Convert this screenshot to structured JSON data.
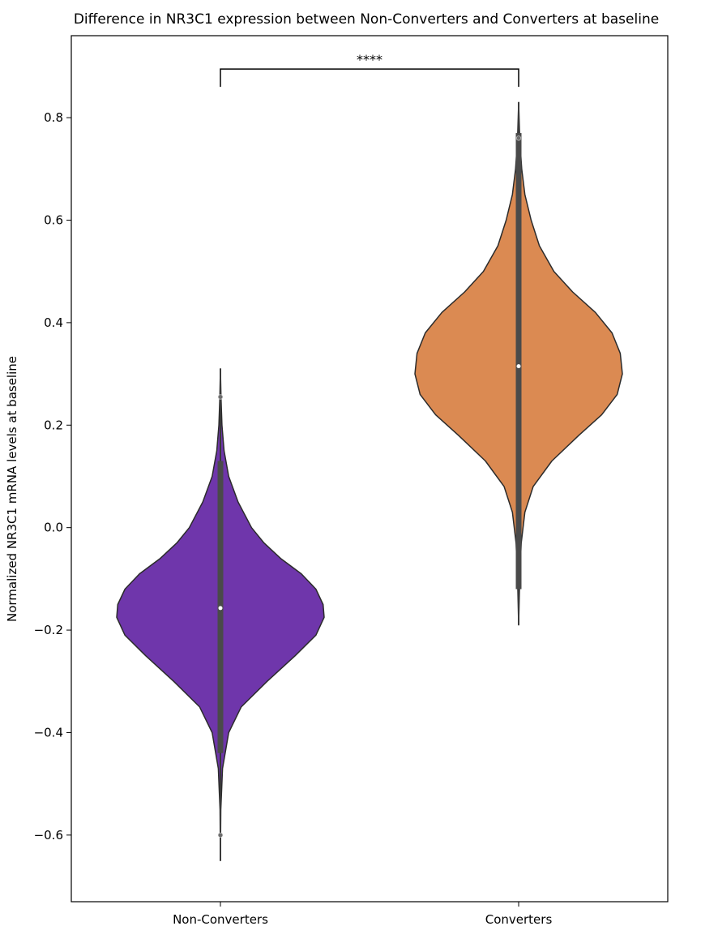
{
  "chart_data": {
    "type": "violin",
    "title": "Difference in NR3C1 expression between Non-Converters and Converters at baseline",
    "xlabel": "",
    "ylabel": "Normalized NR3C1 mRNA levels at baseline",
    "ylim": [
      -0.73,
      0.96
    ],
    "yticks": [
      -0.6,
      -0.4,
      -0.2,
      0.0,
      0.2,
      0.4,
      0.6,
      0.8
    ],
    "ytick_labels": [
      "−0.6",
      "−0.4",
      "−0.2",
      "0.0",
      "0.2",
      "0.4",
      "0.6",
      "0.8"
    ],
    "grid": false,
    "categories": [
      "Non-Converters",
      "Converters"
    ],
    "series": [
      {
        "color": "#6f36ab",
        "median": -0.157,
        "whisker": [
          -0.65,
          0.31
        ],
        "iqr": [
          -0.44,
          0.13
        ],
        "points": [
          -0.6,
          0.255
        ],
        "profile": [
          [
            -0.65,
            0.0
          ],
          [
            -0.55,
            0.004
          ],
          [
            -0.47,
            0.02
          ],
          [
            -0.4,
            0.08
          ],
          [
            -0.35,
            0.2
          ],
          [
            -0.3,
            0.45
          ],
          [
            -0.25,
            0.72
          ],
          [
            -0.21,
            0.92
          ],
          [
            -0.175,
            1.0
          ],
          [
            -0.15,
            0.99
          ],
          [
            -0.12,
            0.92
          ],
          [
            -0.09,
            0.78
          ],
          [
            -0.06,
            0.58
          ],
          [
            -0.03,
            0.42
          ],
          [
            0.0,
            0.3
          ],
          [
            0.05,
            0.17
          ],
          [
            0.1,
            0.08
          ],
          [
            0.15,
            0.035
          ],
          [
            0.2,
            0.015
          ],
          [
            0.25,
            0.006
          ],
          [
            0.31,
            0.0
          ]
        ]
      },
      {
        "color": "#db8a52",
        "median": 0.315,
        "whisker": [
          -0.19,
          0.83
        ],
        "iqr": [
          -0.12,
          0.77
        ],
        "points": [
          0.76
        ],
        "profile": [
          [
            -0.19,
            0.0
          ],
          [
            -0.1,
            0.01
          ],
          [
            -0.03,
            0.025
          ],
          [
            0.03,
            0.06
          ],
          [
            0.08,
            0.14
          ],
          [
            0.13,
            0.32
          ],
          [
            0.18,
            0.58
          ],
          [
            0.22,
            0.8
          ],
          [
            0.26,
            0.95
          ],
          [
            0.3,
            1.0
          ],
          [
            0.34,
            0.98
          ],
          [
            0.38,
            0.9
          ],
          [
            0.42,
            0.74
          ],
          [
            0.46,
            0.52
          ],
          [
            0.5,
            0.34
          ],
          [
            0.55,
            0.2
          ],
          [
            0.6,
            0.12
          ],
          [
            0.65,
            0.06
          ],
          [
            0.7,
            0.03
          ],
          [
            0.76,
            0.01
          ],
          [
            0.83,
            0.0
          ]
        ]
      }
    ],
    "annotation": {
      "text": "****",
      "between": [
        "Non-Converters",
        "Converters"
      ],
      "y": 0.895
    }
  }
}
